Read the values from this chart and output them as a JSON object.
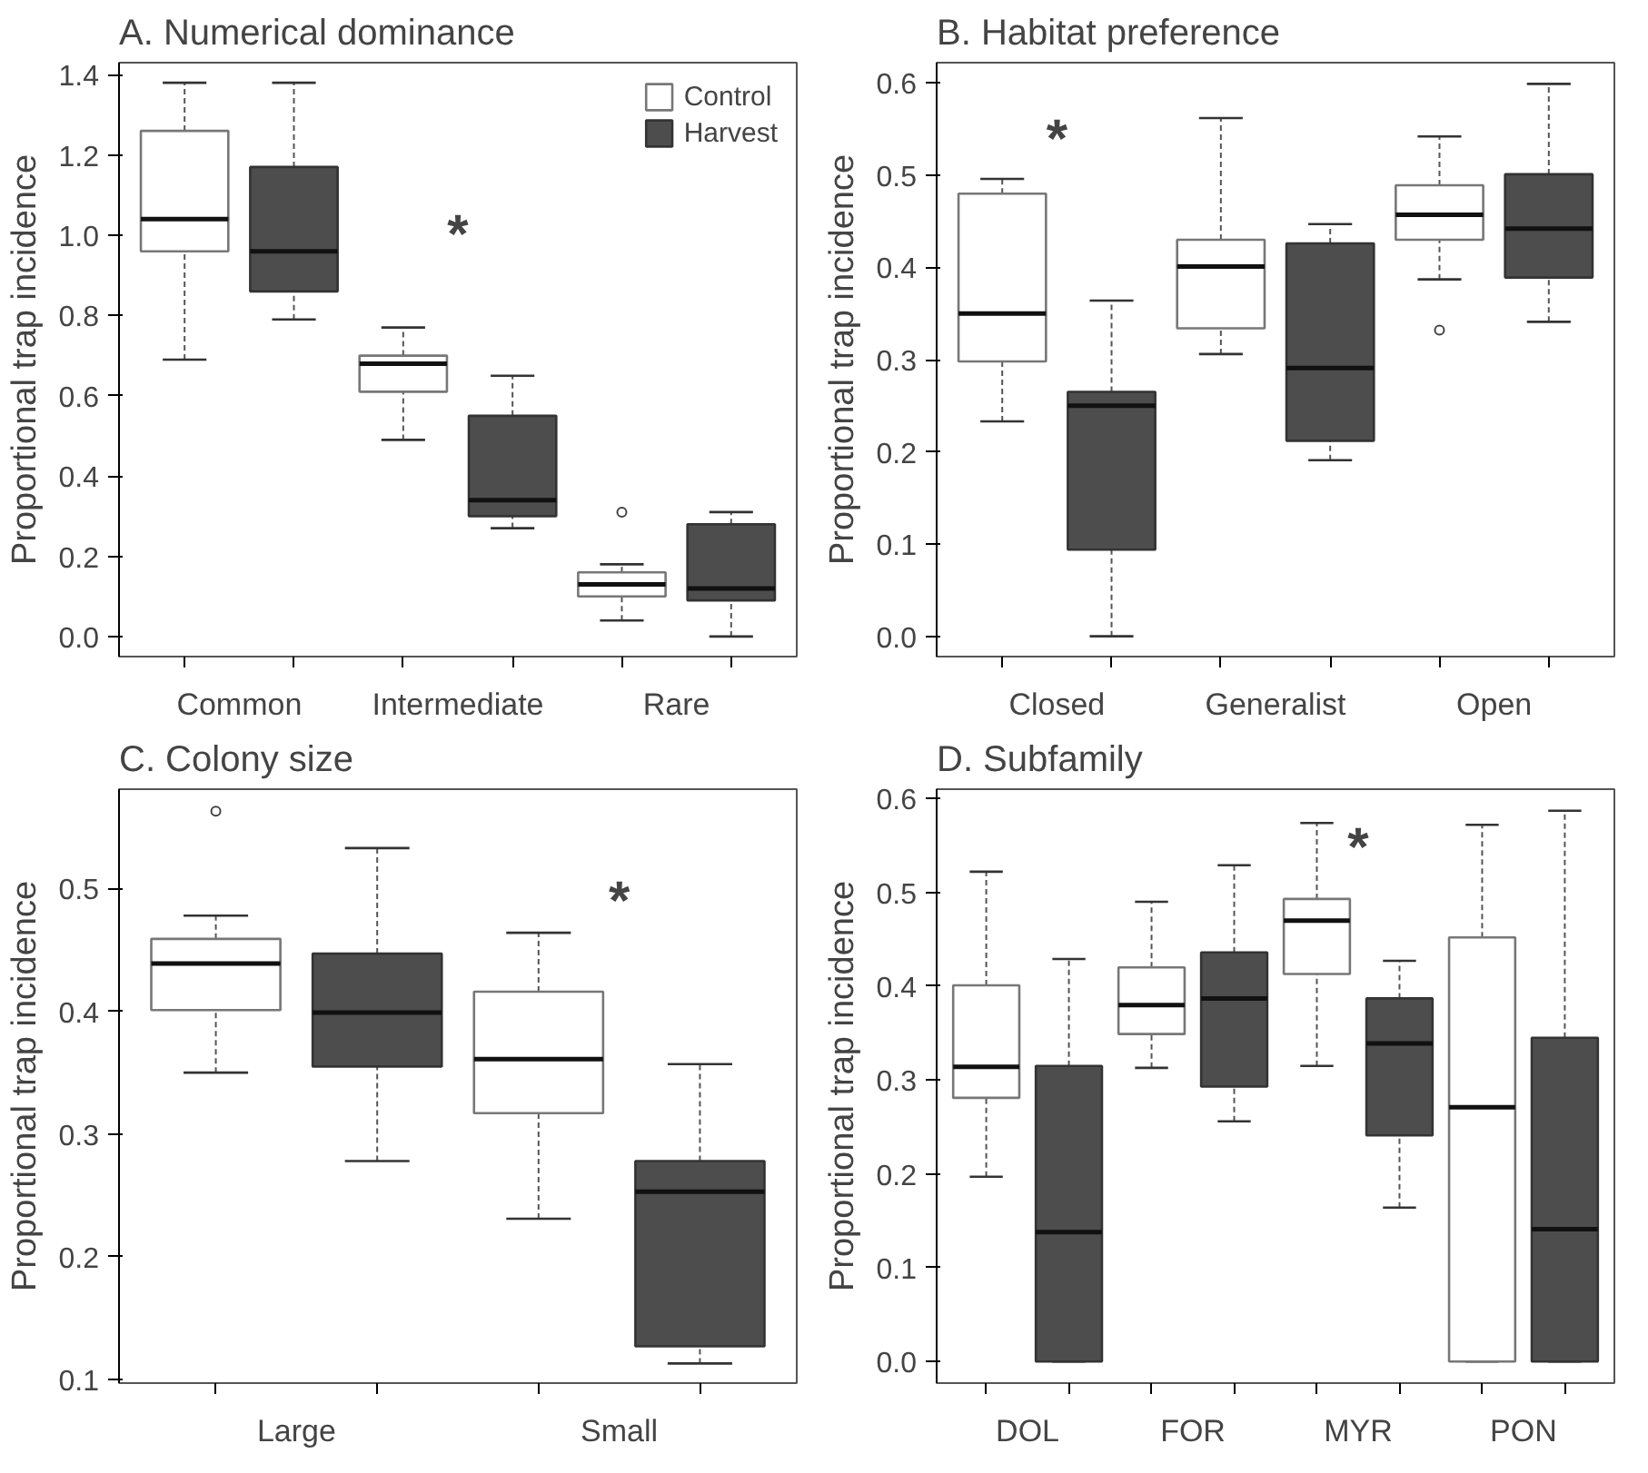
{
  "chart_data": [
    {
      "type": "box",
      "title": "A. Numerical dominance",
      "ylabel": "Proportional trap incidence",
      "categories": [
        "Common",
        "Intermediate",
        "Rare"
      ],
      "legend": "top right",
      "grid": false,
      "ylim": [
        -0.05,
        1.43
      ],
      "yticks": [
        {
          "value": 0,
          "label": "0.0"
        },
        {
          "value": 0.2,
          "label": "0.2"
        },
        {
          "value": 0.4,
          "label": "0.4"
        },
        {
          "value": 0.6,
          "label": "0.6"
        },
        {
          "value": 0.8,
          "label": "0.8"
        },
        {
          "value": 1.0,
          "label": "1.0"
        },
        {
          "value": 1.2,
          "label": "1.2"
        },
        {
          "value": 1.4,
          "label": "1.4"
        }
      ],
      "series": [
        {
          "name": "Control",
          "color": "#ffffff",
          "boxes": [
            {
              "low": 0.69,
              "q1": 0.96,
              "median": 1.04,
              "q3": 1.26,
              "high": 1.38
            },
            {
              "low": 0.49,
              "q1": 0.61,
              "median": 0.68,
              "q3": 0.7,
              "high": 0.77
            },
            {
              "low": 0.04,
              "q1": 0.1,
              "median": 0.13,
              "q3": 0.16,
              "high": 0.18,
              "outliers": [
                0.31
              ]
            }
          ]
        },
        {
          "name": "Harvest",
          "color": "#4d4d4d",
          "boxes": [
            {
              "low": 0.79,
              "q1": 0.86,
              "median": 0.96,
              "q3": 1.17,
              "high": 1.38
            },
            {
              "low": 0.27,
              "q1": 0.3,
              "median": 0.34,
              "q3": 0.55,
              "high": 0.65
            },
            {
              "low": 0.0,
              "q1": 0.09,
              "median": 0.12,
              "q3": 0.28,
              "high": 0.31
            }
          ]
        }
      ],
      "annotations": [
        "*"
      ]
    },
    {
      "type": "box",
      "title": "B. Habitat preference",
      "ylabel": "Proportional trap incidence",
      "categories": [
        "Closed",
        "Generalist",
        "Open"
      ],
      "grid": false,
      "ylim": [
        -0.022,
        0.622
      ],
      "yticks": [
        {
          "value": 0,
          "label": "0.0"
        },
        {
          "value": 0.1,
          "label": "0.1"
        },
        {
          "value": 0.2,
          "label": "0.2"
        },
        {
          "value": 0.3,
          "label": "0.3"
        },
        {
          "value": 0.4,
          "label": "0.4"
        },
        {
          "value": 0.5,
          "label": "0.5"
        },
        {
          "value": 0.6,
          "label": "0.6"
        }
      ],
      "series": [
        {
          "color": "#ffffff",
          "boxes": [
            {
              "low": 0.233,
              "q1": 0.298,
              "median": 0.35,
              "q3": 0.48,
              "high": 0.496
            },
            {
              "low": 0.306,
              "q1": 0.334,
              "median": 0.401,
              "q3": 0.43,
              "high": 0.562
            },
            {
              "low": 0.387,
              "q1": 0.43,
              "median": 0.457,
              "q3": 0.489,
              "high": 0.542,
              "outliers": [
                0.332
              ]
            }
          ]
        },
        {
          "color": "#4d4d4d",
          "boxes": [
            {
              "low": 0.0,
              "q1": 0.094,
              "median": 0.25,
              "q3": 0.265,
              "high": 0.364
            },
            {
              "low": 0.191,
              "q1": 0.212,
              "median": 0.291,
              "q3": 0.426,
              "high": 0.447
            },
            {
              "low": 0.341,
              "q1": 0.389,
              "median": 0.442,
              "q3": 0.501,
              "high": 0.599
            }
          ]
        }
      ],
      "annotations": [
        "*"
      ]
    },
    {
      "type": "box",
      "title": "C. Colony size",
      "ylabel": "Proportional trap incidence",
      "categories": [
        "Large",
        "Small"
      ],
      "grid": false,
      "ylim": [
        0.097,
        0.581
      ],
      "yticks": [
        {
          "value": 0.1,
          "label": "0.1"
        },
        {
          "value": 0.2,
          "label": "0.2"
        },
        {
          "value": 0.3,
          "label": "0.3"
        },
        {
          "value": 0.4,
          "label": "0.4"
        },
        {
          "value": 0.5,
          "label": "0.5"
        }
      ],
      "series": [
        {
          "color": "#ffffff",
          "boxes": [
            {
              "low": 0.35,
              "q1": 0.401,
              "median": 0.439,
              "q3": 0.459,
              "high": 0.478,
              "outliers": [
                0.563
              ]
            },
            {
              "low": 0.231,
              "q1": 0.317,
              "median": 0.361,
              "q3": 0.416,
              "high": 0.464
            }
          ]
        },
        {
          "color": "#4d4d4d",
          "boxes": [
            {
              "low": 0.278,
              "q1": 0.355,
              "median": 0.399,
              "q3": 0.447,
              "high": 0.533
            },
            {
              "low": 0.113,
              "q1": 0.127,
              "median": 0.253,
              "q3": 0.278,
              "high": 0.357
            }
          ]
        }
      ],
      "annotations": [
        "*"
      ]
    },
    {
      "type": "box",
      "title": "D. Subfamily",
      "ylabel": "Proportional trap incidence",
      "categories": [
        "DOL",
        "FOR",
        "MYR",
        "PON"
      ],
      "grid": false,
      "ylim": [
        -0.023,
        0.61
      ],
      "yticks": [
        {
          "value": 0,
          "label": "0.0"
        },
        {
          "value": 0.1,
          "label": "0.1"
        },
        {
          "value": 0.2,
          "label": "0.2"
        },
        {
          "value": 0.3,
          "label": "0.3"
        },
        {
          "value": 0.4,
          "label": "0.4"
        },
        {
          "value": 0.5,
          "label": "0.5"
        },
        {
          "value": 0.6,
          "label": "0.6"
        }
      ],
      "series": [
        {
          "color": "#ffffff",
          "boxes": [
            {
              "low": 0.197,
              "q1": 0.281,
              "median": 0.314,
              "q3": 0.401,
              "high": 0.522
            },
            {
              "low": 0.313,
              "q1": 0.349,
              "median": 0.38,
              "q3": 0.42,
              "high": 0.49
            },
            {
              "low": 0.315,
              "q1": 0.413,
              "median": 0.47,
              "q3": 0.493,
              "high": 0.574
            },
            {
              "low": 0.0,
              "q1": 0.0,
              "median": 0.271,
              "q3": 0.452,
              "high": 0.572
            }
          ]
        },
        {
          "color": "#4d4d4d",
          "boxes": [
            {
              "low": 0.0,
              "q1": 0.0,
              "median": 0.138,
              "q3": 0.315,
              "high": 0.429
            },
            {
              "low": 0.256,
              "q1": 0.293,
              "median": 0.387,
              "q3": 0.436,
              "high": 0.529
            },
            {
              "low": 0.164,
              "q1": 0.241,
              "median": 0.339,
              "q3": 0.387,
              "high": 0.427
            },
            {
              "low": 0.0,
              "q1": 0.0,
              "median": 0.141,
              "q3": 0.345,
              "high": 0.587
            }
          ]
        }
      ],
      "annotations": [
        "*"
      ]
    }
  ]
}
